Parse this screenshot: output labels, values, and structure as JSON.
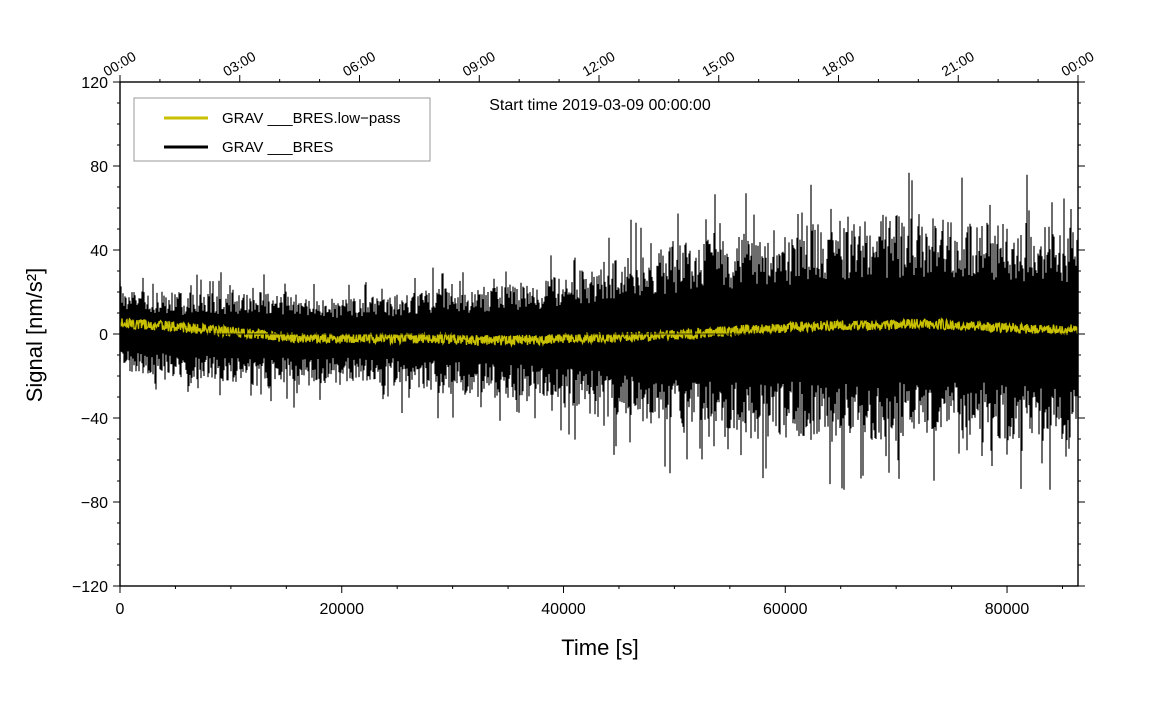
{
  "chart_data": {
    "type": "line",
    "title": "Start time 2019-03-09 00:00:00",
    "xlabel": "Time [s]",
    "ylabel": "Signal [nm/s²]",
    "xlim": [
      0,
      86400
    ],
    "ylim": [
      -120,
      120
    ],
    "x_ticks": [
      0,
      20000,
      40000,
      60000,
      80000
    ],
    "x_tick_labels": [
      "0",
      "20000",
      "40000",
      "60000",
      "80000"
    ],
    "y_ticks": [
      -120,
      -80,
      -40,
      0,
      40,
      80,
      120
    ],
    "y_tick_labels": [
      "−120",
      "−80",
      "−40",
      "0",
      "40",
      "80",
      "120"
    ],
    "top_axis_ticks": [
      0,
      10800,
      21600,
      32400,
      43200,
      54000,
      64800,
      75600,
      86400
    ],
    "top_axis_labels": [
      "00:00",
      "03:00",
      "06:00",
      "09:00",
      "12:00",
      "15:00",
      "18:00",
      "21:00",
      "00:00"
    ],
    "grid": false,
    "legend_position": "top-left",
    "series": [
      {
        "name": "GRAV ___BRES.low−pass",
        "color": "#c8c000",
        "x": [
          0,
          4000,
          8000,
          12000,
          16000,
          20000,
          24000,
          28000,
          32000,
          36000,
          40000,
          44000,
          48000,
          52000,
          56000,
          60000,
          64000,
          68000,
          72000,
          76000,
          80000,
          84000,
          86400
        ],
        "y": [
          5,
          4,
          2,
          0,
          -2,
          -2,
          -2,
          -2,
          -3,
          -3,
          -2,
          -2,
          -1,
          0,
          2,
          3,
          4,
          4,
          5,
          4,
          3,
          2,
          2
        ]
      },
      {
        "name": "GRAV ___BRES",
        "color": "#000000",
        "x": [
          0,
          4000,
          8000,
          12000,
          16000,
          20000,
          24000,
          28000,
          32000,
          36000,
          40000,
          44000,
          48000,
          52000,
          56000,
          60000,
          64000,
          68000,
          72000,
          76000,
          80000,
          84000,
          86400
        ],
        "y_upper": [
          22,
          20,
          20,
          22,
          18,
          17,
          18,
          22,
          22,
          25,
          28,
          35,
          40,
          45,
          48,
          50,
          55,
          58,
          58,
          55,
          55,
          52,
          50
        ],
        "y_lower": [
          -18,
          -20,
          -22,
          -25,
          -25,
          -25,
          -25,
          -28,
          -30,
          -32,
          -35,
          -40,
          -45,
          -50,
          -50,
          -50,
          -52,
          -52,
          -50,
          -50,
          -52,
          -52,
          -50
        ]
      }
    ]
  }
}
